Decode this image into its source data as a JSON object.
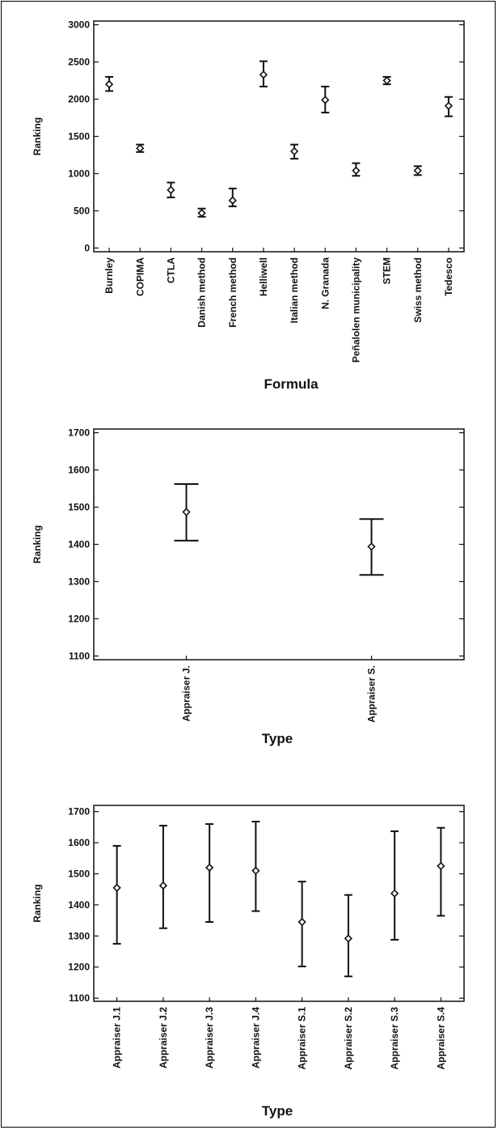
{
  "chart_data": [
    {
      "type": "scatter",
      "xlabel": "Formula",
      "ylabel": "Ranking",
      "ylim": [
        -50,
        3050
      ],
      "yticks": [
        0,
        500,
        1000,
        1500,
        2000,
        2500,
        3000
      ],
      "categories": [
        "Burnley",
        "COPIMA",
        "CTLA",
        "Danish method",
        "French method",
        "Helliwell",
        "Italian method",
        "N. Granada",
        "Peñalolen municipality",
        "STEM",
        "Swiss method",
        "Tedesco"
      ],
      "series": [
        {
          "values": [
            2200,
            1340,
            780,
            470,
            640,
            2330,
            1300,
            1990,
            1040,
            2250,
            1040,
            1910
          ],
          "lower": [
            2110,
            1290,
            680,
            420,
            560,
            2170,
            1200,
            1820,
            970,
            2200,
            980,
            1770
          ],
          "upper": [
            2300,
            1390,
            880,
            530,
            800,
            2510,
            1390,
            2170,
            1140,
            2300,
            1100,
            2030
          ]
        }
      ],
      "grid": false,
      "legend": "none"
    },
    {
      "type": "scatter",
      "xlabel": "Type",
      "ylabel": "Ranking",
      "ylim": [
        1090,
        1710
      ],
      "yticks": [
        1100,
        1200,
        1300,
        1400,
        1500,
        1600,
        1700
      ],
      "categories": [
        "Appraiser J.",
        "Appraiser S."
      ],
      "series": [
        {
          "values": [
            1487,
            1394
          ],
          "lower": [
            1410,
            1318
          ],
          "upper": [
            1562,
            1468
          ]
        }
      ],
      "grid": false,
      "legend": "none"
    },
    {
      "type": "scatter",
      "xlabel": "Type",
      "ylabel": "Ranking",
      "ylim": [
        1090,
        1720
      ],
      "yticks": [
        1100,
        1200,
        1300,
        1400,
        1500,
        1600,
        1700
      ],
      "categories": [
        "Appraiser J.1",
        "Appraiser J.2",
        "Appraiser J.3",
        "Appraiser J.4",
        "Appraiser S.1",
        "Appraiser S.2",
        "Appraiser S.3",
        "Appraiser S.4"
      ],
      "series": [
        {
          "values": [
            1455,
            1462,
            1520,
            1510,
            1345,
            1292,
            1437,
            1525
          ],
          "lower": [
            1275,
            1325,
            1345,
            1380,
            1202,
            1170,
            1288,
            1365
          ],
          "upper": [
            1590,
            1655,
            1660,
            1668,
            1475,
            1432,
            1637,
            1648
          ]
        }
      ],
      "grid": false,
      "legend": "none"
    }
  ]
}
